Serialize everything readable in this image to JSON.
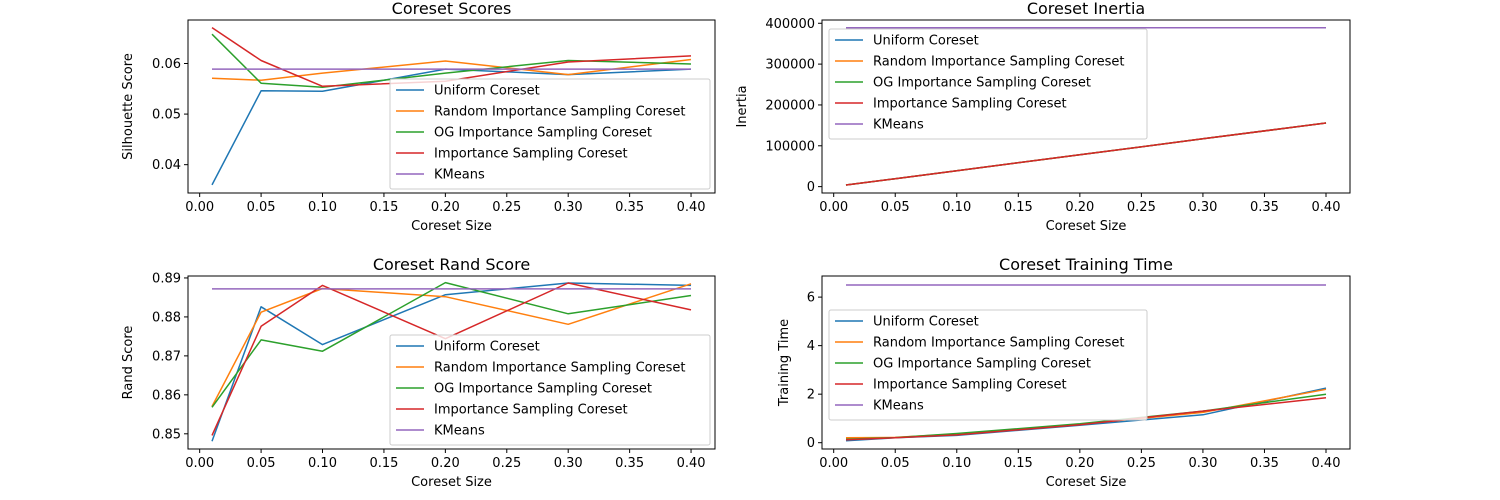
{
  "colors": {
    "Uniform Coreset": "#1f77b4",
    "Random Importance Sampling Coreset": "#ff7f0e",
    "OG Importance Sampling Coreset": "#2ca02c",
    "Importance Sampling Coreset": "#d62728",
    "KMeans": "#9467bd"
  },
  "chart_data": [
    {
      "type": "line",
      "title": "Coreset Scores",
      "xlabel": "Coreset Size",
      "ylabel": "Silhouette Score",
      "x": [
        0.01,
        0.05,
        0.1,
        0.2,
        0.3,
        0.4
      ],
      "xlim": [
        -0.0095,
        0.4195
      ],
      "ylim": [
        0.0344,
        0.0686
      ],
      "xticks": [
        "0.00",
        "0.05",
        "0.10",
        "0.15",
        "0.20",
        "0.25",
        "0.30",
        "0.35",
        "0.40"
      ],
      "yticks": [
        "0.04",
        "0.05",
        "0.06"
      ],
      "grid": false,
      "legend": "lower-right",
      "series": [
        {
          "name": "Uniform Coreset",
          "values": [
            0.036,
            0.0546,
            0.0545,
            0.0589,
            0.0578,
            0.0589
          ]
        },
        {
          "name": "Random Importance Sampling Coreset",
          "values": [
            0.0571,
            0.0567,
            0.0581,
            0.0605,
            0.0578,
            0.0608
          ]
        },
        {
          "name": "OG Importance Sampling Coreset",
          "values": [
            0.0658,
            0.0561,
            0.0553,
            0.0581,
            0.0606,
            0.0599
          ]
        },
        {
          "name": "Importance Sampling Coreset",
          "values": [
            0.0671,
            0.0606,
            0.0555,
            0.0565,
            0.0603,
            0.0615
          ]
        },
        {
          "name": "KMeans",
          "values": [
            0.0589,
            0.0589,
            0.0589,
            0.0589,
            0.0589,
            0.0589
          ]
        }
      ]
    },
    {
      "type": "line",
      "title": "Coreset Inertia",
      "xlabel": "Coreset Size",
      "ylabel": "Inertia",
      "x": [
        0.01,
        0.05,
        0.1,
        0.2,
        0.3,
        0.4
      ],
      "xlim": [
        -0.0095,
        0.4195
      ],
      "ylim": [
        -15600,
        408000
      ],
      "xticks": [
        "0.00",
        "0.05",
        "0.10",
        "0.15",
        "0.20",
        "0.25",
        "0.30",
        "0.35",
        "0.40"
      ],
      "yticks": [
        "0",
        "100000",
        "200000",
        "300000",
        "400000"
      ],
      "grid": false,
      "legend": "upper-left",
      "series": [
        {
          "name": "Uniform Coreset",
          "values": [
            3900,
            19500,
            39000,
            78000,
            117000,
            155800
          ]
        },
        {
          "name": "Random Importance Sampling Coreset",
          "values": [
            3900,
            19500,
            39000,
            78000,
            117000,
            155800
          ]
        },
        {
          "name": "OG Importance Sampling Coreset",
          "values": [
            3900,
            19500,
            39000,
            78000,
            117000,
            155800
          ]
        },
        {
          "name": "Importance Sampling Coreset",
          "values": [
            3900,
            19500,
            39000,
            78000,
            117000,
            155800
          ]
        },
        {
          "name": "KMeans",
          "values": [
            389000,
            389000,
            389000,
            389000,
            389000,
            389000
          ]
        }
      ]
    },
    {
      "type": "line",
      "title": "Coreset Rand Score",
      "xlabel": "Coreset Size",
      "ylabel": "Rand Score",
      "x": [
        0.01,
        0.05,
        0.1,
        0.2,
        0.3,
        0.4
      ],
      "xlim": [
        -0.0095,
        0.4195
      ],
      "ylim": [
        0.8461,
        0.8905
      ],
      "xticks": [
        "0.00",
        "0.05",
        "0.10",
        "0.15",
        "0.20",
        "0.25",
        "0.30",
        "0.35",
        "0.40"
      ],
      "yticks": [
        "0.85",
        "0.86",
        "0.87",
        "0.88",
        "0.89"
      ],
      "grid": false,
      "legend": "lower-right",
      "series": [
        {
          "name": "Uniform Coreset",
          "values": [
            0.8481,
            0.8826,
            0.8729,
            0.8857,
            0.8887,
            0.8881
          ]
        },
        {
          "name": "Random Importance Sampling Coreset",
          "values": [
            0.857,
            0.8812,
            0.8873,
            0.8852,
            0.8781,
            0.8885
          ]
        },
        {
          "name": "OG Importance Sampling Coreset",
          "values": [
            0.8568,
            0.8741,
            0.8712,
            0.8888,
            0.8808,
            0.8855
          ]
        },
        {
          "name": "Importance Sampling Coreset",
          "values": [
            0.8496,
            0.8776,
            0.8881,
            0.8744,
            0.8887,
            0.8818
          ]
        },
        {
          "name": "KMeans",
          "values": [
            0.8872,
            0.8872,
            0.8872,
            0.8872,
            0.8872,
            0.8872
          ]
        }
      ]
    },
    {
      "type": "line",
      "title": "Coreset Training Time",
      "xlabel": "Coreset Size",
      "ylabel": "Training Time",
      "x": [
        0.01,
        0.05,
        0.1,
        0.2,
        0.3,
        0.4
      ],
      "xlim": [
        -0.0095,
        0.4195
      ],
      "ylim": [
        -0.26,
        6.87
      ],
      "xticks": [
        "0.00",
        "0.05",
        "0.10",
        "0.15",
        "0.20",
        "0.25",
        "0.30",
        "0.35",
        "0.40"
      ],
      "yticks": [
        "0",
        "2",
        "4",
        "6"
      ],
      "grid": false,
      "legend": "center-left",
      "series": [
        {
          "name": "Uniform Coreset",
          "values": [
            0.08,
            0.2,
            0.3,
            0.72,
            1.15,
            2.25
          ]
        },
        {
          "name": "Random Importance Sampling Coreset",
          "values": [
            0.2,
            0.22,
            0.36,
            0.76,
            1.25,
            2.2
          ]
        },
        {
          "name": "OG Importance Sampling Coreset",
          "values": [
            0.14,
            0.21,
            0.38,
            0.78,
            1.3,
            2.0
          ]
        },
        {
          "name": "Importance Sampling Coreset",
          "values": [
            0.12,
            0.2,
            0.32,
            0.74,
            1.3,
            1.85
          ]
        },
        {
          "name": "KMeans",
          "values": [
            6.5,
            6.5,
            6.5,
            6.5,
            6.5,
            6.5
          ]
        }
      ]
    }
  ]
}
